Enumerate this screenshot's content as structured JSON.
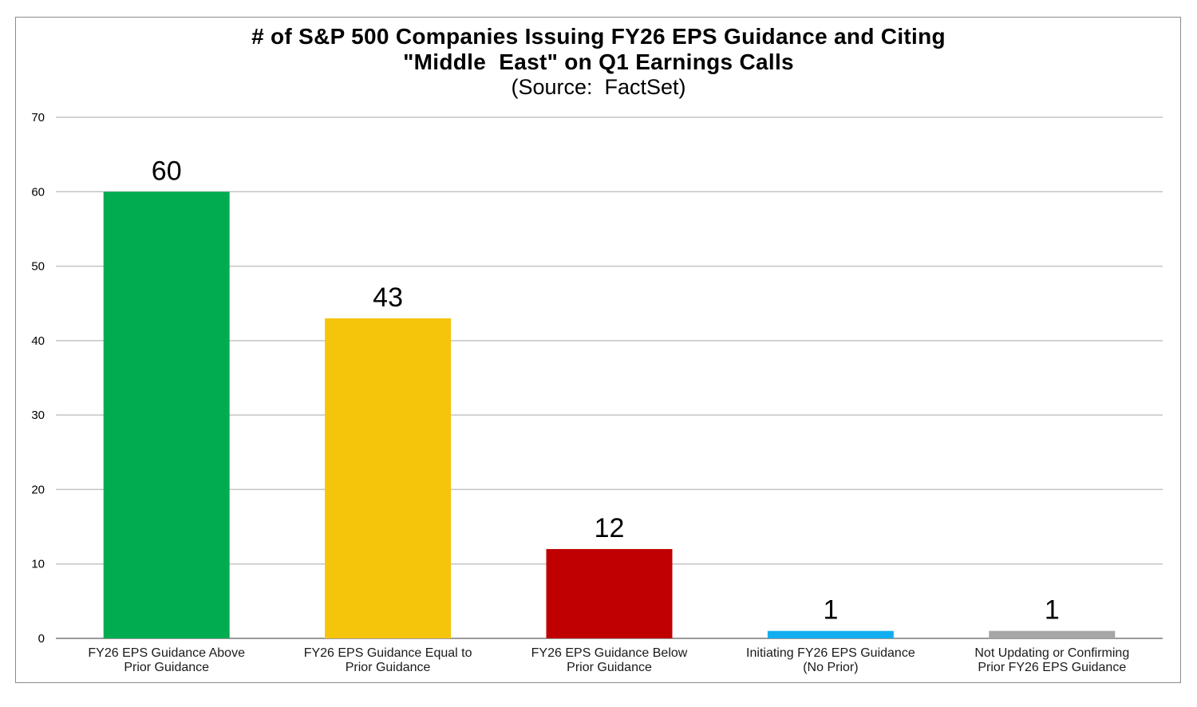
{
  "chart_data": {
    "type": "bar",
    "title_lines": [
      "# of S&P 500 Companies Issuing FY26 EPS Guidance and Citing",
      "\"Middle  East\" on Q1 Earnings Calls"
    ],
    "subtitle": "(Source:  FactSet)",
    "categories": [
      [
        "FY26 EPS Guidance Above",
        "Prior Guidance"
      ],
      [
        "FY26 EPS Guidance Equal to",
        "Prior Guidance"
      ],
      [
        "FY26 EPS Guidance Below",
        "Prior Guidance"
      ],
      [
        "Initiating FY26 EPS Guidance",
        "(No Prior)"
      ],
      [
        "Not Updating or Confirming",
        "Prior FY26 EPS Guidance"
      ]
    ],
    "values": [
      60,
      43,
      12,
      1,
      1
    ],
    "data_labels": [
      "60",
      "43",
      "12",
      "1",
      "1"
    ],
    "colors": [
      "#00ac4f",
      "#f5c50c",
      "#c00000",
      "#12aef0",
      "#a6a6a6"
    ],
    "ylim": [
      0,
      70
    ],
    "yticks": [
      0,
      10,
      20,
      30,
      40,
      50,
      60,
      70
    ],
    "ytick_labels": [
      "0",
      "10",
      "20",
      "30",
      "40",
      "50",
      "60",
      "70"
    ],
    "xlabel": "",
    "ylabel": "",
    "grid": true,
    "legend": "none"
  }
}
